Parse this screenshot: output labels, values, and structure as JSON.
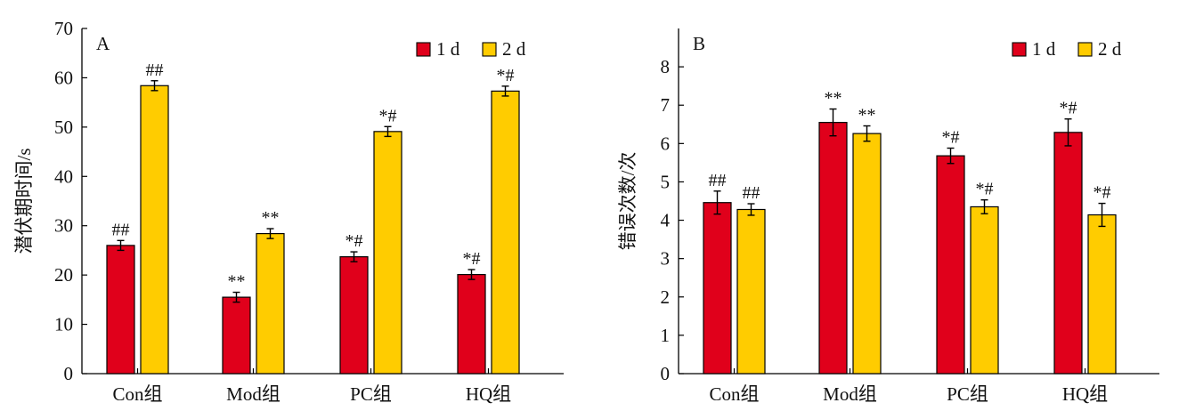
{
  "colors": {
    "day1": "#e0001b",
    "day2": "#ffcc00",
    "axis": "#000000"
  },
  "chart_data": [
    {
      "type": "bar",
      "panel_label": "A",
      "ylabel": "潜伏期时间/s",
      "xlabel": "",
      "ylim": [
        0,
        70
      ],
      "yticks": [
        "0",
        "10",
        "20",
        "30",
        "40",
        "50",
        "60",
        "70"
      ],
      "categories": [
        "Con组",
        "Mod组",
        "PC组",
        "HQ组"
      ],
      "legend_position": "top-right",
      "series": [
        {
          "name": "1 d",
          "values": [
            26.0,
            15.5,
            23.7,
            20.1
          ],
          "errors": [
            1.0,
            1.0,
            1.0,
            1.0
          ],
          "annotations": [
            "##",
            "**",
            "*#",
            "*#"
          ]
        },
        {
          "name": "2 d",
          "values": [
            58.4,
            28.4,
            49.1,
            57.3
          ],
          "errors": [
            1.0,
            1.0,
            1.0,
            1.0
          ],
          "annotations": [
            "##",
            "**",
            "*#",
            "*#"
          ]
        }
      ]
    },
    {
      "type": "bar",
      "panel_label": "B",
      "ylabel": "错误次数/次",
      "xlabel": "",
      "ylim": [
        0,
        9
      ],
      "yticks": [
        "0",
        "1",
        "2",
        "3",
        "4",
        "5",
        "6",
        "7",
        "8"
      ],
      "categories": [
        "Con组",
        "Mod组",
        "PC组",
        "HQ组"
      ],
      "legend_position": "top-right",
      "series": [
        {
          "name": "1 d",
          "values": [
            4.46,
            6.55,
            5.68,
            6.29
          ],
          "errors": [
            0.3,
            0.35,
            0.2,
            0.35
          ],
          "annotations": [
            "##",
            "**",
            "*#",
            "*#"
          ]
        },
        {
          "name": "2 d",
          "values": [
            4.28,
            6.26,
            4.35,
            4.14
          ],
          "errors": [
            0.15,
            0.2,
            0.18,
            0.3
          ],
          "annotations": [
            "##",
            "**",
            "*#",
            "*#"
          ]
        }
      ]
    }
  ]
}
